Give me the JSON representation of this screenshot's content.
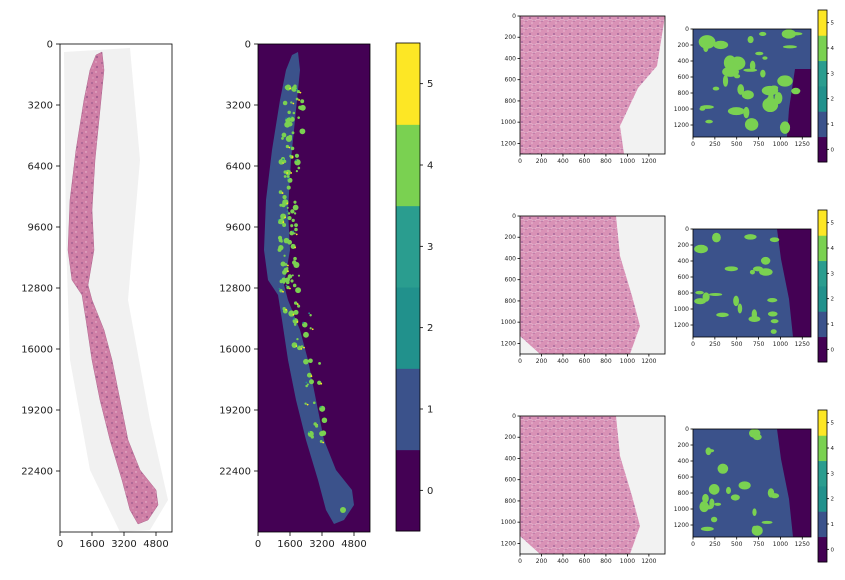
{
  "colors": {
    "he_tissue": "#cf7fa6",
    "he_tissue_dark": "#a8527f",
    "he_nuclei": "#6b3a7a",
    "he_background": "#f1f1f1",
    "viridis": [
      "#440154",
      "#3b528b",
      "#21918c",
      "#2a9d8f",
      "#7ad151",
      "#fde725"
    ]
  },
  "chart_data": [
    {
      "id": "wsi_he",
      "type": "image",
      "xticks": [
        "0",
        "1600",
        "3200",
        "4800"
      ],
      "yticks": [
        "0",
        "3200",
        "6400",
        "9600",
        "12800",
        "16000",
        "19200",
        "22400"
      ],
      "xlim": [
        0,
        5600
      ],
      "ylim": [
        25600,
        0
      ]
    },
    {
      "id": "wsi_mask",
      "type": "heatmap",
      "xticks": [
        "0",
        "1600",
        "3200",
        "4800"
      ],
      "yticks": [
        "0",
        "3200",
        "6400",
        "9600",
        "12800",
        "16000",
        "19200",
        "22400"
      ],
      "xlim": [
        0,
        5600
      ],
      "ylim": [
        25600,
        0
      ],
      "colorbar": {
        "ticks": [
          "0",
          "1",
          "2",
          "3",
          "4",
          "5"
        ],
        "range": [
          -0.5,
          5.5
        ],
        "levels": 6
      }
    },
    {
      "id": "patches",
      "type": "heatmap",
      "rows": [
        {
          "he": {
            "xticks": [
              "0",
              "200",
              "400",
              "600",
              "800",
              "1000",
              "1200"
            ],
            "yticks": [
              "0",
              "200",
              "400",
              "600",
              "800",
              "1000",
              "1200"
            ]
          },
          "mask": {
            "xticks": [
              "0",
              "250",
              "500",
              "750",
              "1000",
              "1250"
            ],
            "yticks": [
              "0",
              "200",
              "400",
              "600",
              "800",
              "1000",
              "1200"
            ]
          },
          "colorbar_ticks": [
            "0",
            "1",
            "2",
            "3",
            "4",
            "5"
          ]
        },
        {
          "he": {
            "xticks": [
              "0",
              "200",
              "400",
              "600",
              "800",
              "1000",
              "1200"
            ],
            "yticks": [
              "0",
              "200",
              "400",
              "600",
              "800",
              "1000",
              "1200"
            ]
          },
          "mask": {
            "xticks": [
              "0",
              "250",
              "500",
              "750",
              "1000",
              "1250"
            ],
            "yticks": [
              "0",
              "200",
              "400",
              "600",
              "800",
              "1000",
              "1200"
            ]
          },
          "colorbar_ticks": [
            "0",
            "1",
            "2",
            "3",
            "4",
            "5"
          ]
        },
        {
          "he": {
            "xticks": [
              "0",
              "200",
              "400",
              "600",
              "800",
              "1000",
              "1200"
            ],
            "yticks": [
              "0",
              "200",
              "400",
              "600",
              "800",
              "1000",
              "1200"
            ]
          },
          "mask": {
            "xticks": [
              "0",
              "250",
              "500",
              "750",
              "1000",
              "1250"
            ],
            "yticks": [
              "0",
              "200",
              "400",
              "600",
              "800",
              "1000",
              "1200"
            ]
          },
          "colorbar_ticks": [
            "0",
            "1",
            "2",
            "3",
            "4",
            "5"
          ]
        }
      ]
    }
  ]
}
